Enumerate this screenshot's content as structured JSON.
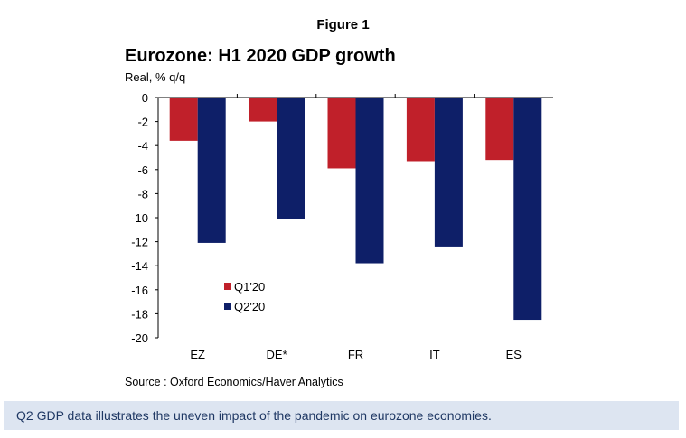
{
  "figure_label": "Figure 1",
  "source": "Source : Oxford Economics/Haver Analytics",
  "caption": "Q2 GDP data illustrates the uneven impact of the pandemic on eurozone economies.",
  "colors": {
    "q1": "#c0202a",
    "q2": "#0e1f68",
    "caption_bg": "#dde5f1",
    "caption_text": "#1f3864"
  },
  "chart_data": {
    "type": "bar",
    "title": "Eurozone: H1 2020 GDP growth",
    "ylabel": "Real, % q/q",
    "xlabel": "",
    "categories": [
      "EZ",
      "DE*",
      "FR",
      "IT",
      "ES"
    ],
    "series": [
      {
        "name": "Q1'20",
        "values": [
          -3.6,
          -2.0,
          -5.9,
          -5.3,
          -5.2
        ]
      },
      {
        "name": "Q2'20",
        "values": [
          -12.1,
          -10.1,
          -13.8,
          -12.4,
          -18.5
        ]
      }
    ],
    "ylim": [
      -20,
      0
    ],
    "yticks": [
      0,
      -2,
      -4,
      -6,
      -8,
      -10,
      -12,
      -14,
      -16,
      -18,
      -20
    ],
    "legend_position": "bottom-left inside",
    "grid": false
  }
}
